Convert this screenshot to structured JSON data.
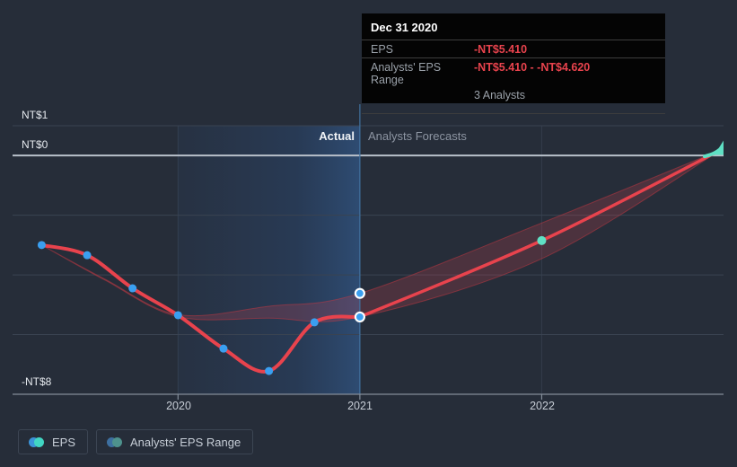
{
  "tooltip": {
    "date": "Dec 31 2020",
    "rows": [
      {
        "label": "EPS",
        "value": "-NT$5.410"
      },
      {
        "label": "Analysts' EPS Range",
        "value": "-NT$5.410 - -NT$4.620",
        "sub": "3 Analysts"
      }
    ]
  },
  "annotations": {
    "actual": "Actual",
    "forecast": "Analysts Forecasts"
  },
  "legend": {
    "items": [
      {
        "label": "EPS",
        "colors": [
          "#3b93d8",
          "#41d6c3"
        ]
      },
      {
        "label": "Analysts' EPS Range",
        "colors": [
          "#3d6fa0",
          "#4e928d"
        ]
      }
    ]
  },
  "colors": {
    "background": "#262d39",
    "line_red": "#e8434d",
    "point_blue": "#3a9ff0",
    "teal": "#5fe0c4",
    "divider_blue": "#41729f",
    "zero_line": "#b9c0ca",
    "gridline": "#3a4351",
    "axis": "#848d99",
    "band_fill": "rgba(229,72,85,0.20)",
    "band_edge": "rgba(200,55,65,0.5)",
    "tooltip_bg": "#040404"
  },
  "chart_data": {
    "type": "line",
    "title": "EPS: actual vs analysts forecasts (NT$)",
    "xlim": [
      2019.09,
      2023.0
    ],
    "ylim": [
      -8,
      1.6
    ],
    "yticks": [
      {
        "value": 1,
        "label": "NT$1"
      },
      {
        "value": 0,
        "label": "NT$0"
      },
      {
        "value": -8,
        "label": "-NT$8"
      }
    ],
    "ygrid": [
      1,
      -2,
      -4,
      -6
    ],
    "zero_line": 0,
    "xticks": [
      {
        "value": 2020,
        "label": "2020"
      },
      {
        "value": 2021,
        "label": "2021"
      },
      {
        "value": 2022,
        "label": "2022"
      }
    ],
    "highlight_span": {
      "from": 2020,
      "to": 2021
    },
    "divider_x": 2021,
    "series": [
      {
        "name": "EPS (actual)",
        "kind": "actual",
        "x": [
          2019.25,
          2019.5,
          2019.75,
          2020.0,
          2020.25,
          2020.5,
          2020.75,
          2021.0
        ],
        "y": [
          -3.0,
          -3.34,
          -4.45,
          -5.35,
          -6.47,
          -7.22,
          -5.59,
          -5.41
        ]
      },
      {
        "name": "EPS (analysts forecast)",
        "kind": "forecast",
        "x": [
          2021.0,
          2022.0,
          2022.99
        ],
        "y": [
          -5.41,
          -2.85,
          0.2
        ]
      }
    ],
    "range_band": {
      "name": "Analysts' EPS Range",
      "upper": {
        "x": [
          2019.25,
          2019.6,
          2020.0,
          2020.5,
          2021.0,
          2022.0,
          2022.99
        ],
        "y": [
          -3.0,
          -4.15,
          -5.33,
          -5.05,
          -4.62,
          -2.26,
          0.2
        ]
      },
      "lower": {
        "x": [
          2019.25,
          2019.6,
          2020.0,
          2020.5,
          2021.0,
          2022.0,
          2022.99
        ],
        "y": [
          -3.0,
          -4.18,
          -5.4,
          -5.45,
          -5.41,
          -3.46,
          0.2
        ]
      }
    },
    "selected_points": [
      {
        "x": 2021.0,
        "y": -5.41,
        "series": "EPS"
      },
      {
        "x": 2021.0,
        "y": -4.62,
        "series": "Range upper"
      }
    ],
    "forecast_point": {
      "x": 2022.0,
      "y": -2.85
    },
    "end_marker": {
      "x": 2022.99,
      "y": 0.2
    }
  }
}
